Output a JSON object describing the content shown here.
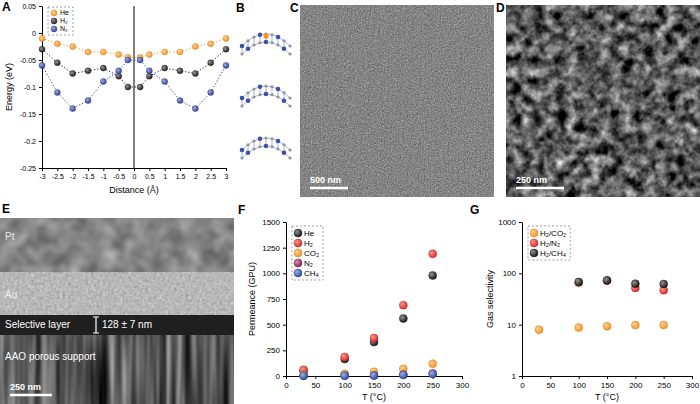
{
  "chart_data": [
    {
      "panel": "A",
      "type": "line",
      "marker": "circle",
      "line_style": "dotted",
      "x_label": "Distance (Å)",
      "y_label": "Energy (eV)",
      "xlim": [
        -3,
        3
      ],
      "xticks": [
        -3,
        -2.5,
        -2,
        -1.5,
        -1,
        -0.5,
        0,
        0.5,
        1,
        1.5,
        2,
        2.5,
        3
      ],
      "ylim": [
        -0.25,
        0.05
      ],
      "yticks": [
        -0.25,
        -0.2,
        -0.15,
        -0.1,
        -0.05,
        0,
        0.05
      ],
      "vline": 0,
      "legend": "upper left",
      "series": [
        {
          "name": "He",
          "color": "#f7941d",
          "x": [
            -3,
            -2.5,
            -2,
            -1.5,
            -1,
            -0.5,
            -0.2,
            0.2,
            0.5,
            1,
            1.5,
            2,
            2.5,
            3
          ],
          "values": [
            -0.01,
            -0.02,
            -0.025,
            -0.035,
            -0.035,
            -0.04,
            -0.045,
            -0.045,
            -0.04,
            -0.035,
            -0.035,
            -0.025,
            -0.02,
            -0.01
          ]
        },
        {
          "name": "H₂",
          "color": "#1a1a1a",
          "x": [
            -3,
            -2.5,
            -2,
            -1.5,
            -1,
            -0.5,
            -0.2,
            0.2,
            0.5,
            1,
            1.5,
            2,
            2.5,
            3
          ],
          "values": [
            -0.03,
            -0.055,
            -0.075,
            -0.07,
            -0.065,
            -0.08,
            -0.1,
            -0.1,
            -0.08,
            -0.065,
            -0.07,
            -0.075,
            -0.055,
            -0.03
          ]
        },
        {
          "name": "N₂",
          "color": "#2e3d9e",
          "x": [
            -3,
            -2.5,
            -2,
            -1.5,
            -1,
            -0.5,
            -0.2,
            0.2,
            0.5,
            1,
            1.5,
            2,
            2.5,
            3
          ],
          "values": [
            -0.06,
            -0.11,
            -0.14,
            -0.125,
            -0.09,
            -0.07,
            -0.05,
            -0.05,
            -0.07,
            -0.09,
            -0.125,
            -0.14,
            -0.11,
            -0.06
          ]
        }
      ]
    },
    {
      "panel": "F",
      "type": "scatter",
      "marker": "circle",
      "x_label": "T (°C)",
      "y_label": "Permeance (GPU)",
      "xlim": [
        0,
        300
      ],
      "xticks": [
        0,
        50,
        100,
        150,
        200,
        250,
        300
      ],
      "ylim": [
        0,
        1500
      ],
      "yticks": [
        0,
        250,
        500,
        750,
        1000,
        1250,
        1500
      ],
      "legend": "upper left",
      "x": [
        30,
        100,
        150,
        200,
        250
      ],
      "series": [
        {
          "name": "He",
          "color": "#111111",
          "values": [
            50,
            165,
            330,
            560,
            980
          ]
        },
        {
          "name": "H₂",
          "color": "#e0241b",
          "values": [
            60,
            185,
            370,
            690,
            1190
          ]
        },
        {
          "name": "CO₂",
          "color": "#f7941d",
          "values": [
            10,
            22,
            42,
            70,
            120
          ]
        },
        {
          "name": "N₂",
          "color": "#8b1a4a",
          "values": [
            2,
            4,
            6,
            13,
            25
          ]
        },
        {
          "name": "CH₄",
          "color": "#2b4aa8",
          "values": [
            2,
            3,
            5,
            11,
            20
          ]
        }
      ]
    },
    {
      "panel": "G",
      "type": "scatter",
      "marker": "circle",
      "log": "y",
      "x_label": "T (°C)",
      "y_label": "Gas selectivity",
      "xlim": [
        0,
        300
      ],
      "xticks": [
        0,
        50,
        100,
        150,
        200,
        250,
        300
      ],
      "ylim": [
        1,
        1000
      ],
      "yticks": [
        1,
        10,
        100,
        1000
      ],
      "legend": "upper left",
      "x": [
        30,
        100,
        150,
        200,
        250
      ],
      "series": [
        {
          "name": "H₂/CO₂",
          "color": "#f7941d",
          "values": [
            8,
            8.8,
            9.3,
            9.8,
            9.9
          ]
        },
        {
          "name": "H₂/N₂",
          "color": "#e0241b",
          "values": [
            null,
            66,
            72,
            52,
            47
          ]
        },
        {
          "name": "H₂/CH₄",
          "color": "#111111",
          "values": [
            null,
            68,
            73,
            63,
            62
          ]
        }
      ]
    }
  ],
  "images": [
    {
      "panel": "B"
    },
    {
      "panel": "C",
      "scale_bar": "500 nm"
    },
    {
      "panel": "D",
      "scale_bar": "250 nm"
    },
    {
      "panel": "E",
      "scale_bar": "250 nm",
      "layers": [
        "Pt",
        "Au",
        "Selective layer",
        "AAO porous support"
      ],
      "thickness": "128 ± 7 nm"
    }
  ]
}
